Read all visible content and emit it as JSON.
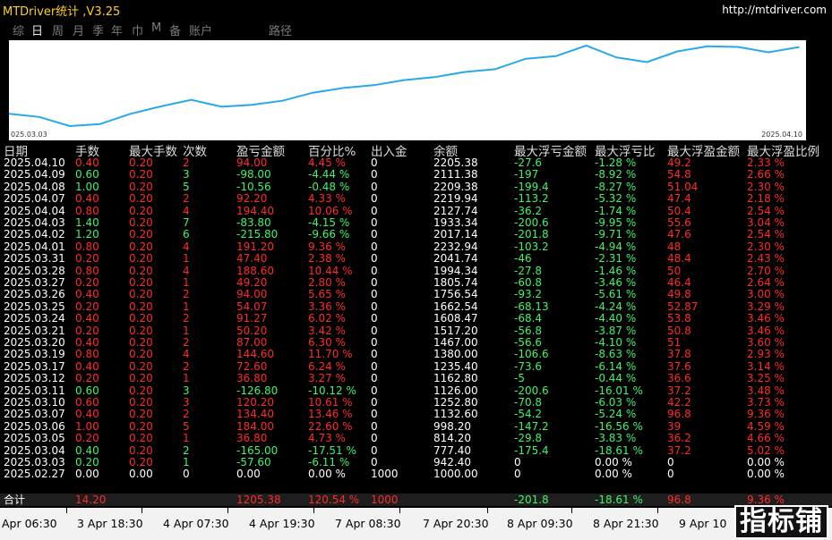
{
  "app": {
    "title": "MTDriver统计 ,V3.25",
    "url": "http://mtdriver.com"
  },
  "nav": [
    "综",
    "日",
    "周",
    "月",
    "季",
    "年",
    "巾",
    "M",
    "备",
    "账户",
    "路径"
  ],
  "nav_active": 1,
  "chart_data": {
    "type": "line",
    "x_start_label": "025.03.03",
    "x_end_label": "2025.04.10",
    "x": [
      "2025.02.27",
      "2025.03.03",
      "2025.03.04",
      "2025.03.05",
      "2025.03.06",
      "2025.03.07",
      "2025.03.10",
      "2025.03.11",
      "2025.03.12",
      "2025.03.17",
      "2025.03.19",
      "2025.03.20",
      "2025.03.21",
      "2025.03.24",
      "2025.03.25",
      "2025.03.26",
      "2025.03.27",
      "2025.03.28",
      "2025.03.31",
      "2025.04.01",
      "2025.04.02",
      "2025.04.03",
      "2025.04.04",
      "2025.04.07",
      "2025.04.08",
      "2025.04.09",
      "2025.04.10"
    ],
    "values": [
      1000.0,
      942.4,
      777.4,
      814.2,
      998.2,
      1132.6,
      1252.8,
      1126.0,
      1162.8,
      1235.4,
      1380.0,
      1467.0,
      1517.2,
      1608.47,
      1662.54,
      1756.54,
      1805.74,
      1994.34,
      2041.74,
      2232.94,
      2017.14,
      1933.34,
      2127.74,
      2219.94,
      2209.38,
      2111.38,
      2205.38
    ],
    "color": "#27a8ea"
  },
  "columns": [
    "日期",
    "手数",
    "最大手数",
    "次数",
    "盈亏金额",
    "百分比%",
    "出入金",
    "余额",
    "最大浮亏金额",
    "最大浮亏比",
    "最大浮盈金额",
    "最大浮盈比例"
  ],
  "rows": [
    [
      "2025.04.10",
      "0.40",
      "0.20",
      "2",
      "94.00",
      "4.45 %",
      "0",
      "2205.38",
      "-27.6",
      "-1.28 %",
      "49.2",
      "2.33 %"
    ],
    [
      "2025.04.09",
      "0.60",
      "0.20",
      "3",
      "-98.00",
      "-4.44 %",
      "0",
      "2111.38",
      "-197",
      "-8.92 %",
      "54.8",
      "2.66 %"
    ],
    [
      "2025.04.08",
      "1.00",
      "0.20",
      "5",
      "-10.56",
      "-0.48 %",
      "0",
      "2209.38",
      "-199.4",
      "-8.27 %",
      "51.04",
      "2.30 %"
    ],
    [
      "2025.04.07",
      "0.40",
      "0.20",
      "2",
      "92.20",
      "4.33 %",
      "0",
      "2219.94",
      "-113.2",
      "-5.32 %",
      "47.4",
      "2.18 %"
    ],
    [
      "2025.04.04",
      "0.80",
      "0.20",
      "4",
      "194.40",
      "10.06 %",
      "0",
      "2127.74",
      "-36.2",
      "-1.74 %",
      "50.4",
      "2.54 %"
    ],
    [
      "2025.04.03",
      "1.40",
      "0.20",
      "7",
      "-83.80",
      "-4.15 %",
      "0",
      "1933.34",
      "-200.6",
      "-9.95 %",
      "55.6",
      "3.04 %"
    ],
    [
      "2025.04.02",
      "1.20",
      "0.20",
      "6",
      "-215.80",
      "-9.66 %",
      "0",
      "2017.14",
      "-201.8",
      "-9.71 %",
      "47.6",
      "2.54 %"
    ],
    [
      "2025.04.01",
      "0.80",
      "0.20",
      "4",
      "191.20",
      "9.36 %",
      "0",
      "2232.94",
      "-103.2",
      "-4.94 %",
      "48",
      "2.30 %"
    ],
    [
      "2025.03.31",
      "0.20",
      "0.20",
      "1",
      "47.40",
      "2.38 %",
      "0",
      "2041.74",
      "-46",
      "-2.31 %",
      "48.4",
      "2.43 %"
    ],
    [
      "2025.03.28",
      "0.80",
      "0.20",
      "4",
      "188.60",
      "10.44 %",
      "0",
      "1994.34",
      "-27.8",
      "-1.46 %",
      "50",
      "2.70 %"
    ],
    [
      "2025.03.27",
      "0.20",
      "0.20",
      "1",
      "49.20",
      "2.80 %",
      "0",
      "1805.74",
      "-60.8",
      "-3.46 %",
      "46.4",
      "2.64 %"
    ],
    [
      "2025.03.26",
      "0.40",
      "0.20",
      "2",
      "94.00",
      "5.65 %",
      "0",
      "1756.54",
      "-93.2",
      "-5.61 %",
      "49.8",
      "3.00 %"
    ],
    [
      "2025.03.25",
      "0.20",
      "0.20",
      "1",
      "54.07",
      "3.36 %",
      "0",
      "1662.54",
      "-68.13",
      "-4.24 %",
      "52.87",
      "3.29 %"
    ],
    [
      "2025.03.24",
      "0.40",
      "0.20",
      "2",
      "91.27",
      "6.02 %",
      "0",
      "1608.47",
      "-68.4",
      "-4.40 %",
      "53.8",
      "3.46 %"
    ],
    [
      "2025.03.21",
      "0.20",
      "0.20",
      "1",
      "50.20",
      "3.42 %",
      "0",
      "1517.20",
      "-56.8",
      "-3.87 %",
      "50.8",
      "3.46 %"
    ],
    [
      "2025.03.20",
      "0.40",
      "0.20",
      "2",
      "87.00",
      "6.30 %",
      "0",
      "1467.00",
      "-56.6",
      "-4.10 %",
      "51",
      "3.60 %"
    ],
    [
      "2025.03.19",
      "0.80",
      "0.20",
      "4",
      "144.60",
      "11.70 %",
      "0",
      "1380.00",
      "-106.6",
      "-8.63 %",
      "37.8",
      "2.93 %"
    ],
    [
      "2025.03.17",
      "0.40",
      "0.20",
      "2",
      "72.60",
      "6.24 %",
      "0",
      "1235.40",
      "-73.6",
      "-6.14 %",
      "37.6",
      "3.14 %"
    ],
    [
      "2025.03.12",
      "0.20",
      "0.20",
      "1",
      "36.80",
      "3.27 %",
      "0",
      "1162.80",
      "-5",
      "-0.44 %",
      "36.6",
      "3.25 %"
    ],
    [
      "2025.03.11",
      "0.60",
      "0.20",
      "3",
      "-126.80",
      "-10.12 %",
      "0",
      "1126.00",
      "-200.6",
      "-16.01 %",
      "37.2",
      "3.48 %"
    ],
    [
      "2025.03.10",
      "0.60",
      "0.20",
      "3",
      "120.20",
      "10.61 %",
      "0",
      "1252.80",
      "-70.8",
      "-6.03 %",
      "42.2",
      "3.73 %"
    ],
    [
      "2025.03.07",
      "0.40",
      "0.20",
      "2",
      "134.40",
      "13.46 %",
      "0",
      "1132.60",
      "-54.2",
      "-5.24 %",
      "96.8",
      "9.36 %"
    ],
    [
      "2025.03.06",
      "1.00",
      "0.20",
      "5",
      "184.00",
      "22.60 %",
      "0",
      "998.20",
      "-147.2",
      "-16.56 %",
      "39",
      "4.59 %"
    ],
    [
      "2025.03.05",
      "0.20",
      "0.20",
      "1",
      "36.80",
      "4.73 %",
      "0",
      "814.20",
      "-29.8",
      "-3.83 %",
      "36.2",
      "4.66 %"
    ],
    [
      "2025.03.04",
      "0.40",
      "0.20",
      "2",
      "-165.00",
      "-17.51 %",
      "0",
      "777.40",
      "-175.4",
      "-18.61 %",
      "37.2",
      "5.02 %"
    ],
    [
      "2025.03.03",
      "0.20",
      "0.20",
      "1",
      "-57.60",
      "-6.11 %",
      "0",
      "942.40",
      "0",
      "0.00 %",
      "0",
      "0.00 %"
    ],
    [
      "2025.02.27",
      "0.00",
      "0.00",
      "0",
      "0.00",
      "0.00 %",
      "1000",
      "1000.00",
      "0",
      "0.00 %",
      "0",
      "0.00 %"
    ]
  ],
  "total": [
    "合计",
    "14.20",
    "",
    "",
    "1205.38",
    "120.54 %",
    "1000",
    "",
    "-201.8",
    "-18.61 %",
    "96.8",
    "9.36 %"
  ],
  "time_axis": [
    "Apr 06:30",
    "3 Apr 18:30",
    "4 Apr 07:30",
    "4 Apr 19:30",
    "7 Apr 08:30",
    "7 Apr 20:30",
    "8 Apr 09:30",
    "8 Apr 21:30",
    "9 Apr 10"
  ],
  "watermark": "指标铺"
}
